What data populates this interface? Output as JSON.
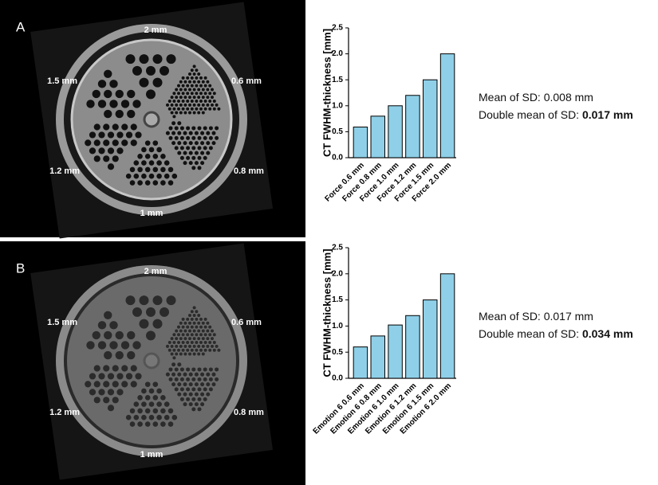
{
  "panels": [
    {
      "letter": "A",
      "hole_labels": [
        "2 mm",
        "0.6 mm",
        "0.8 mm",
        "1 mm",
        "1.2 mm",
        "1.5 mm"
      ],
      "stats": [
        {
          "label": "Mean of SD:",
          "value": "0.008 mm"
        },
        {
          "label": "Double mean of SD:",
          "value": "0.017 mm"
        }
      ]
    },
    {
      "letter": "B",
      "hole_labels": [
        "2 mm",
        "0.6 mm",
        "0.8 mm",
        "1 mm",
        "1.2 mm",
        "1.5 mm"
      ],
      "stats": [
        {
          "label": "Mean of SD:",
          "value": "0.017 mm"
        },
        {
          "label": "Double mean of SD:",
          "value": "0.034 mm"
        }
      ]
    }
  ],
  "chart_data": [
    {
      "type": "bar",
      "y_label": "CT FWHM-thickness [mm]",
      "categories": [
        "Force 0.6 mm",
        "Force 0.8 mm",
        "Force 1.0 mm",
        "Force 1.2 mm",
        "Force 1.5 mm",
        "Force 2.0 mm"
      ],
      "values": [
        0.59,
        0.8,
        1.0,
        1.2,
        1.5,
        2.0
      ],
      "color": "#8fd0e8",
      "ylim": [
        0,
        2.5
      ],
      "yticks": [
        {
          "value": 0,
          "label": "0.0"
        },
        0.5,
        {
          "value": 1,
          "label": "1.0"
        },
        1.5,
        {
          "value": 2,
          "label": "2.0"
        },
        2.5
      ]
    },
    {
      "type": "bar",
      "y_label": "CT FWHM-thickness [mm]",
      "categories": [
        "Emotion 6 0.6 mm",
        "Emotion 6 0.8 mm",
        "Emotion 6 1.0 mm",
        "Emotion 6 1.2 mm",
        "Emotion 6 1.5 mm",
        "Emotion 6 2.0 mm"
      ],
      "values": [
        0.6,
        0.81,
        1.02,
        1.2,
        1.5,
        2.0
      ],
      "color": "#8fd0e8",
      "ylim": [
        0,
        2.5
      ],
      "yticks": [
        {
          "value": 0,
          "label": "0.0"
        },
        0.5,
        {
          "value": 1,
          "label": "1.0"
        },
        1.5,
        {
          "value": 2,
          "label": "2.0"
        },
        2.5
      ]
    }
  ]
}
